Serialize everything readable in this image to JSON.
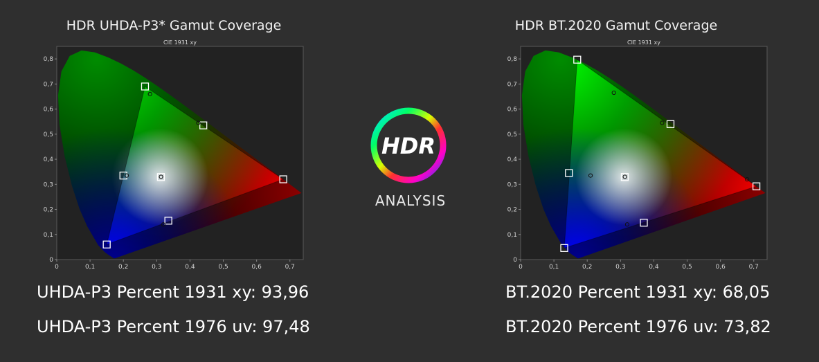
{
  "charts": [
    {
      "title": "HDR UHDA-P3* Gamut Coverage",
      "subtitle": "CIE 1931 xy",
      "stats": {
        "xy": "UHDA-P3 Percent 1931 xy: 93,96",
        "uv": "UHDA-P3 Percent 1976 uv: 97,48"
      }
    },
    {
      "title": "HDR BT.2020  Gamut Coverage",
      "subtitle": "CIE 1931 xy",
      "stats": {
        "xy": "BT.2020 Percent 1931 xy: 68,05",
        "uv": "BT.2020 Percent 1976 uv: 73,82"
      }
    }
  ],
  "logo": {
    "mark": "HDR",
    "caption": "ANALYSIS"
  },
  "colors": {
    "background": "#2f2f2f",
    "plot_bg": "#222222",
    "marker": "#ffffff"
  },
  "chart_data": [
    {
      "type": "scatter",
      "title": "HDR UHDA-P3* Gamut Coverage",
      "subtitle": "CIE 1931 xy",
      "xlim": [
        0,
        0.74
      ],
      "ylim": [
        0,
        0.85
      ],
      "x_ticks": [
        "0",
        "0,1",
        "0,2",
        "0,3",
        "0,4",
        "0,5",
        "0,6",
        "0,7"
      ],
      "y_ticks": [
        "0",
        "0,1",
        "0,2",
        "0,3",
        "0,4",
        "0,5",
        "0,6",
        "0,7",
        "0,8"
      ],
      "target_gamut": [
        [
          0.68,
          0.32
        ],
        [
          0.265,
          0.69
        ],
        [
          0.15,
          0.06
        ]
      ],
      "targets": [
        {
          "name": "red",
          "x": 0.68,
          "y": 0.32
        },
        {
          "name": "green",
          "x": 0.265,
          "y": 0.69
        },
        {
          "name": "blue",
          "x": 0.15,
          "y": 0.06
        },
        {
          "name": "white",
          "x": 0.3127,
          "y": 0.329
        },
        {
          "name": "cyan",
          "x": 0.2,
          "y": 0.335
        },
        {
          "name": "magenta",
          "x": 0.335,
          "y": 0.155
        },
        {
          "name": "yellow",
          "x": 0.44,
          "y": 0.535
        }
      ],
      "measured": [
        {
          "name": "green",
          "x": 0.28,
          "y": 0.66
        },
        {
          "name": "white",
          "x": 0.313,
          "y": 0.33
        },
        {
          "name": "cyan",
          "x": 0.21,
          "y": 0.335
        },
        {
          "name": "yellow",
          "x": 0.425,
          "y": 0.545
        },
        {
          "name": "magenta",
          "x": 0.32,
          "y": 0.14
        }
      ]
    },
    {
      "type": "scatter",
      "title": "HDR BT.2020  Gamut Coverage",
      "subtitle": "CIE 1931 xy",
      "xlim": [
        0,
        0.74
      ],
      "ylim": [
        0,
        0.85
      ],
      "x_ticks": [
        "0",
        "0,1",
        "0,2",
        "0,3",
        "0,4",
        "0,5",
        "0,6",
        "0,7"
      ],
      "y_ticks": [
        "0",
        "0,1",
        "0,2",
        "0,3",
        "0,4",
        "0,5",
        "0,6",
        "0,7",
        "0,8"
      ],
      "target_gamut": [
        [
          0.708,
          0.292
        ],
        [
          0.17,
          0.797
        ],
        [
          0.131,
          0.046
        ]
      ],
      "targets": [
        {
          "name": "red",
          "x": 0.708,
          "y": 0.292
        },
        {
          "name": "green",
          "x": 0.17,
          "y": 0.797
        },
        {
          "name": "blue",
          "x": 0.131,
          "y": 0.046
        },
        {
          "name": "white",
          "x": 0.3127,
          "y": 0.329
        },
        {
          "name": "cyan",
          "x": 0.145,
          "y": 0.345
        },
        {
          "name": "magenta",
          "x": 0.37,
          "y": 0.147
        },
        {
          "name": "yellow",
          "x": 0.45,
          "y": 0.54
        }
      ],
      "measured": [
        {
          "name": "red",
          "x": 0.68,
          "y": 0.32
        },
        {
          "name": "green",
          "x": 0.28,
          "y": 0.665
        },
        {
          "name": "white",
          "x": 0.313,
          "y": 0.33
        },
        {
          "name": "cyan",
          "x": 0.21,
          "y": 0.335
        },
        {
          "name": "yellow",
          "x": 0.425,
          "y": 0.545
        },
        {
          "name": "magenta",
          "x": 0.32,
          "y": 0.14
        }
      ]
    }
  ]
}
